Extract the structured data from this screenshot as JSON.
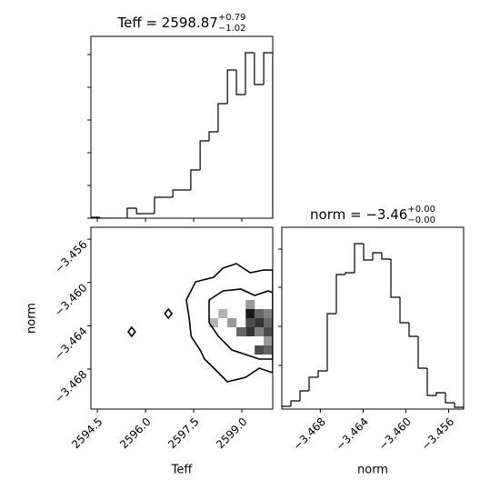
{
  "chart_data": [
    {
      "type": "histogram",
      "title": "Teff = 2598.87",
      "title_upper": "+0.79",
      "title_lower": "−1.02",
      "bins": [
        2594.3,
        2594.58,
        2594.87,
        2595.15,
        2595.43,
        2595.72,
        2596.0,
        2596.28,
        2596.56,
        2596.85,
        2597.13,
        2597.41,
        2597.7,
        2597.98,
        2598.26,
        2598.55,
        2598.83,
        2599.11,
        2599.39,
        2599.68,
        2599.96
      ],
      "counts": [
        1,
        0,
        0,
        0,
        11,
        5,
        5,
        23,
        23,
        31,
        31,
        53,
        85,
        95,
        126,
        163,
        136,
        182,
        147,
        182
      ],
      "xlim": [
        2594.3,
        2599.96
      ],
      "ylim": [
        0,
        200
      ],
      "xticks": [
        2594.5,
        2596.0,
        2597.5,
        2599.0
      ],
      "yticks": [
        0,
        36,
        72,
        108,
        144,
        180
      ],
      "color": "#000000"
    },
    {
      "type": "contour",
      "xlabel": "Teff",
      "ylabel": "norm",
      "xlim": [
        2594.3,
        2599.96
      ],
      "ylim": [
        -3.4717,
        -3.4549
      ],
      "xticks": [
        {
          "value": 2594.5,
          "label": "2594.5"
        },
        {
          "value": 2596.0,
          "label": "2596.0"
        },
        {
          "value": 2597.5,
          "label": "2597.5"
        },
        {
          "value": 2599.0,
          "label": "2599.0"
        }
      ],
      "yticks": [
        {
          "value": -3.456,
          "label": "−3.456"
        },
        {
          "value": -3.46,
          "label": "−3.460"
        },
        {
          "value": -3.464,
          "label": "−3.464"
        },
        {
          "value": -3.468,
          "label": "−3.468"
        }
      ],
      "density": {
        "x": [
          2599.26,
          2599.54,
          2599.82,
          2599.26,
          2599.54,
          2599.82,
          2598.97,
          2599.26,
          2599.54,
          2599.82,
          2599.54,
          2599.82,
          2598.69,
          2598.41,
          2598.12,
          2599.26,
          2599.82
        ],
        "y": [
          -3.46288,
          -3.46288,
          -3.46288,
          -3.46372,
          -3.46372,
          -3.46372,
          -3.46456,
          -3.46456,
          -3.46456,
          -3.46456,
          -3.46624,
          -3.46624,
          -3.46372,
          -3.46288,
          -3.46372,
          -3.46204,
          -3.4654
        ],
        "values": [
          0.9,
          0.6,
          0.5,
          0.7,
          0.8,
          0.6,
          0.6,
          0.8,
          0.5,
          0.7,
          0.7,
          0.6,
          0.4,
          0.3,
          0.3,
          0.4,
          0.4
        ]
      },
      "contours": [
        {
          "x": [
            2597.27,
            2597.56,
            2598.12,
            2598.41,
            2598.83,
            2599.26,
            2599.68,
            2599.96,
            2599.96,
            2599.54,
            2599.12,
            2598.55,
            2598.27,
            2597.84,
            2597.7,
            2597.42,
            2597.36
          ],
          "y": [
            -3.46162,
            -3.45994,
            -3.45952,
            -3.45868,
            -3.45826,
            -3.4591,
            -3.45885,
            -3.45885,
            -3.46834,
            -3.46792,
            -3.46876,
            -3.46918,
            -3.46834,
            -3.46708,
            -3.46624,
            -3.46498,
            -3.4633
          ]
        },
        {
          "x": [
            2597.98,
            2598.41,
            2598.97,
            2599.4,
            2599.82,
            2599.96,
            2599.96,
            2599.54,
            2599.12,
            2598.69,
            2598.27,
            2597.98
          ],
          "y": [
            -3.46162,
            -3.46078,
            -3.46061,
            -3.4612,
            -3.46078,
            -3.46094,
            -3.46708,
            -3.46708,
            -3.46666,
            -3.46624,
            -3.46498,
            -3.46372
          ]
        },
        {
          "x": [
            2595.46,
            2595.57,
            2595.68,
            2595.57
          ],
          "y": [
            -3.46456,
            -3.46414,
            -3.46456,
            -3.46498
          ]
        },
        {
          "x": [
            2596.6,
            2596.71,
            2596.82,
            2596.71
          ],
          "y": [
            -3.46288,
            -3.46246,
            -3.46288,
            -3.4633
          ]
        }
      ],
      "color": "#000000"
    },
    {
      "type": "histogram",
      "title": "norm = −3.46",
      "title_upper": "+0.00",
      "title_lower": "−0.00",
      "xlabel": "norm",
      "bins": [
        -3.4716,
        -3.47075,
        -3.4699,
        -3.46905,
        -3.4682,
        -3.46735,
        -3.4665,
        -3.46565,
        -3.4648,
        -3.46395,
        -3.4631,
        -3.46225,
        -3.4614,
        -3.46055,
        -3.4597,
        -3.45885,
        -3.458,
        -3.45715,
        -3.4563,
        -3.45545,
        -3.4546
      ],
      "counts": [
        3,
        9,
        20,
        35,
        42,
        105,
        148,
        150,
        182,
        164,
        172,
        165,
        123,
        95,
        80,
        45,
        15,
        18,
        7,
        2
      ],
      "xlim": [
        -3.4716,
        -3.4546
      ],
      "ylim": [
        0,
        200
      ],
      "xticks": [
        {
          "value": -3.468,
          "label": "−3.468"
        },
        {
          "value": -3.464,
          "label": "−3.464"
        },
        {
          "value": -3.46,
          "label": "−3.460"
        },
        {
          "value": -3.456,
          "label": "−3.456"
        }
      ],
      "yticks": [
        48,
        91,
        134,
        176
      ],
      "color": "#000000"
    }
  ]
}
